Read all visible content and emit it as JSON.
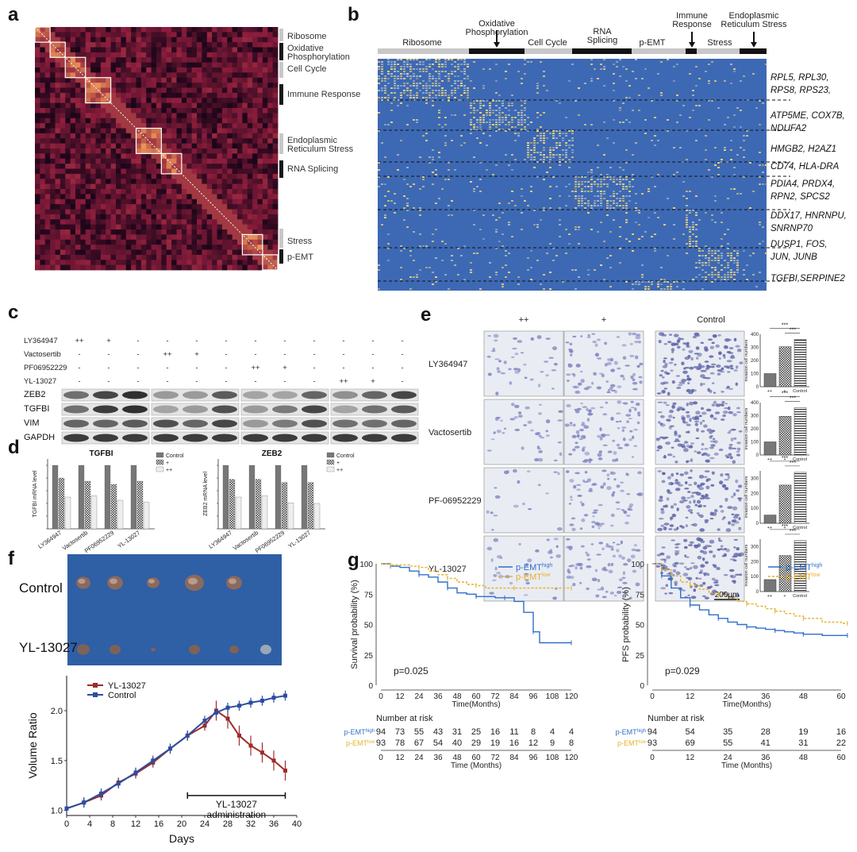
{
  "panel_letters": {
    "a": "a",
    "b": "b",
    "c": "c",
    "d": "d",
    "e": "e",
    "f": "f",
    "g": "g"
  },
  "panel_a": {
    "colors": {
      "low": "#1a0519",
      "mid": "#8c1d3c",
      "high": "#f6a25c",
      "diag": "#ffffff"
    },
    "modules": [
      {
        "name": "Ribosome",
        "bar": "#c8c8c8"
      },
      {
        "name": "Oxidative Phosphorylation",
        "bar": "#1a1a1a"
      },
      {
        "name": "Cell Cycle",
        "bar": "#c8c8c8"
      },
      {
        "name": "Immune Response",
        "bar": "#1a1a1a"
      },
      {
        "name": "Endoplasmic Reticulum Stress",
        "bar": "#c8c8c8"
      },
      {
        "name": "RNA Splicing",
        "bar": "#1a1a1a"
      },
      {
        "name": "Stress",
        "bar": "#c8c8c8"
      },
      {
        "name": "p-EMT",
        "bar": "#1a1a1a"
      }
    ],
    "labels": {
      "ribosome": "Ribosome",
      "oxphos1": "Oxidative",
      "oxphos2": "Phosphorylation",
      "cellcycle": "Cell Cycle",
      "immune": "Immune Response",
      "er1": "Endoplasmic",
      "er2": "Reticulum Stress",
      "rna": "RNA Splicing",
      "stress": "Stress",
      "pemt": "p-EMT"
    }
  },
  "panel_b": {
    "colors": {
      "base": "#3d69b4",
      "hot": "#f0d27a",
      "warm": "#a9b9c4"
    },
    "header": {
      "ribosome": "Ribosome",
      "oxphos1": "Oxidative",
      "oxphos2": "Phosphorylation",
      "cellcycle": "Cell Cycle",
      "rna1": "RNA",
      "rna2": "Splicing",
      "pemt": "p-EMT",
      "immune1": "Immune",
      "immune2": "Response",
      "stress": "Stress",
      "er1": "Endoplasmic",
      "er2": "Reticulum Stress"
    },
    "gene_labels": [
      [
        "RPL5, RPL30,",
        "RPS8, RPS23,"
      ],
      [
        "ATP5ME, COX7B,",
        "NDUFA2"
      ],
      [
        "HMGB2, H2AZ1"
      ],
      [
        "CD74, HLA-DRA"
      ],
      [
        "PDIA4, PRDX4,",
        "RPN2, SPCS2"
      ],
      [
        "DDX17, HNRNPU,",
        "SNRNP70"
      ],
      [
        "DUSP1, FOS,",
        "JUN, JUNB"
      ],
      [
        "TGFBI,SERPINE2"
      ]
    ]
  },
  "panel_c": {
    "rows": [
      {
        "label": "LY364947",
        "values": [
          "++",
          "+",
          "-",
          "-",
          "-",
          "-",
          "-",
          "-",
          "-",
          "-",
          "-",
          "-"
        ]
      },
      {
        "label": "Vactosertib",
        "values": [
          "-",
          "-",
          "-",
          "++",
          "+",
          "-",
          "-",
          "-",
          "-",
          "-",
          "-",
          "-"
        ]
      },
      {
        "label": "PF06952229",
        "values": [
          "-",
          "-",
          "-",
          "-",
          "-",
          "-",
          "++",
          "+",
          "-",
          "-",
          "-",
          "-"
        ]
      },
      {
        "label": "YL-13027",
        "values": [
          "-",
          "-",
          "-",
          "-",
          "-",
          "-",
          "-",
          "-",
          "-",
          "++",
          "+",
          "-"
        ]
      }
    ],
    "blots": [
      "ZEB2",
      "TGFBI",
      "VIM",
      "GAPDH"
    ]
  },
  "panel_d": {
    "charts": [
      {
        "title": "TGFBI",
        "ylabel": "TGFBI mRNA level",
        "groups": [
          "LY364947",
          "Vactosertib",
          "PF06952229",
          "YL-13027"
        ],
        "series": [
          {
            "name": "Control",
            "values": [
              1,
              1,
              1,
              1
            ]
          },
          {
            "name": "+",
            "values": [
              0.8,
              0.75,
              0.7,
              0.75
            ]
          },
          {
            "name": "++",
            "values": [
              0.5,
              0.52,
              0.45,
              0.42
            ]
          }
        ]
      },
      {
        "title": "ZEB2",
        "ylabel": "ZEB2 mRNA level",
        "groups": [
          "LY364947",
          "Vactosertib",
          "PF06952229",
          "YL-13027"
        ],
        "series": [
          {
            "name": "Control",
            "values": [
              1,
              1,
              1,
              1
            ]
          },
          {
            "name": "+",
            "values": [
              0.78,
              0.78,
              0.73,
              0.73
            ]
          },
          {
            "name": "++",
            "values": [
              0.5,
              0.52,
              0.41,
              0.4
            ]
          }
        ]
      }
    ],
    "legend": [
      "Control",
      "+",
      "++"
    ]
  },
  "panel_e": {
    "cols": [
      "++",
      "+",
      "Control"
    ],
    "rows": [
      {
        "label": "LY364947",
        "values": [
          100,
          305,
          360
        ],
        "ylim": [
          0,
          400
        ],
        "ticks": [
          "0",
          "100",
          "200",
          "300",
          "400"
        ]
      },
      {
        "label": "Vactosertib",
        "values": [
          100,
          295,
          360
        ],
        "ylim": [
          0,
          400
        ],
        "ticks": [
          "0",
          "100",
          "200",
          "300",
          "400"
        ]
      },
      {
        "label": "PF-06952229",
        "values": [
          55,
          255,
          340
        ],
        "ylim": [
          0,
          350
        ],
        "ticks": [
          "0",
          "100",
          "200",
          "300"
        ]
      },
      {
        "label": "YL-13027",
        "values": [
          80,
          240,
          340
        ],
        "ylim": [
          0,
          350
        ],
        "ticks": [
          "0",
          "100",
          "200",
          "300"
        ]
      }
    ],
    "bar_ylabel": "invasion cell numbers",
    "bar_xticks": [
      "++",
      "+",
      "Control"
    ],
    "sig": "***",
    "scale": "200μm"
  },
  "panel_f": {
    "photo_labels": {
      "control": "Control",
      "yl": "YL-13027"
    },
    "chart_data": {
      "type": "line",
      "xlabel": "Days",
      "ylabel": "Volume Ratio",
      "xlim": [
        0,
        40
      ],
      "ylim": [
        0.95,
        2.35
      ],
      "xticks": [
        0,
        4,
        8,
        12,
        16,
        20,
        24,
        28,
        32,
        36,
        40
      ],
      "yticks": [
        1.0,
        1.5,
        2.0
      ],
      "series": [
        {
          "name": "YL-13027",
          "color": "#9e2a2b",
          "x": [
            0,
            3,
            6,
            9,
            12,
            15,
            18,
            21,
            24,
            26,
            28,
            30,
            32,
            34,
            36,
            38
          ],
          "y": [
            1.02,
            1.08,
            1.15,
            1.28,
            1.37,
            1.48,
            1.62,
            1.75,
            1.85,
            2.0,
            1.92,
            1.75,
            1.65,
            1.58,
            1.5,
            1.4
          ]
        },
        {
          "name": "Control",
          "color": "#2a4ea0",
          "x": [
            0,
            3,
            6,
            9,
            12,
            15,
            18,
            21,
            24,
            26,
            28,
            30,
            32,
            34,
            36,
            38
          ],
          "y": [
            1.02,
            1.08,
            1.17,
            1.27,
            1.38,
            1.5,
            1.62,
            1.75,
            1.9,
            1.98,
            2.03,
            2.05,
            2.08,
            2.1,
            2.13,
            2.15
          ]
        }
      ],
      "annotation": {
        "line1": "YL-13027",
        "line2": "administration"
      }
    }
  },
  "panel_g": {
    "charts": [
      {
        "ylabel": "Survival probability (%)",
        "xlabel": "Time(Months)",
        "pvalue": "p=0.025",
        "xticks": [
          0,
          12,
          24,
          36,
          48,
          60,
          72,
          84,
          96,
          108,
          120
        ],
        "yticks": [
          0,
          25,
          50,
          75,
          100
        ],
        "legend": [
          {
            "name": "p-EMT",
            "sup": "high",
            "color": "#2f6fcb"
          },
          {
            "name": "p-EMT",
            "sup": "low",
            "color": "#e6b12c"
          }
        ],
        "series": [
          {
            "name": "p-EMT high",
            "color": "#2f6fcb",
            "x": [
              0,
              6,
              12,
              18,
              24,
              30,
              36,
              42,
              48,
              54,
              60,
              66,
              72,
              78,
              84,
              90,
              96,
              100,
              108,
              120
            ],
            "y": [
              100,
              98,
              97,
              94,
              91,
              89,
              85,
              80,
              76,
              75,
              73,
              73,
              72,
              72,
              69,
              60,
              44,
              35,
              35,
              35
            ]
          },
          {
            "name": "p-EMT low",
            "color": "#e6b12c",
            "x": [
              0,
              6,
              12,
              18,
              24,
              30,
              36,
              42,
              48,
              54,
              60,
              66,
              72,
              84,
              96,
              108,
              120
            ],
            "y": [
              100,
              99,
              99,
              98,
              97,
              94,
              91,
              88,
              85,
              83,
              82,
              80,
              80,
              80,
              80,
              80,
              80
            ]
          }
        ],
        "risk": {
          "title": "Number at risk",
          "times": [
            "0",
            "12",
            "24",
            "36",
            "48",
            "60",
            "72",
            "84",
            "96",
            "108",
            "120"
          ],
          "xlabel": "Time (Months)",
          "rows": [
            {
              "name": "p-EMT",
              "sup": "high",
              "color": "#2f6fcb",
              "values": [
                "94",
                "73",
                "55",
                "43",
                "31",
                "25",
                "16",
                "11",
                "8",
                "4",
                "4"
              ]
            },
            {
              "name": "p-EMT",
              "sup": "low",
              "color": "#e6b12c",
              "values": [
                "93",
                "78",
                "67",
                "54",
                "40",
                "29",
                "19",
                "16",
                "12",
                "9",
                "8"
              ]
            }
          ]
        }
      },
      {
        "ylabel": "PFS probability (%)",
        "xlabel": "Time(Months)",
        "pvalue": "p=0.029",
        "xticks": [
          0,
          12,
          24,
          36,
          48,
          60
        ],
        "yticks": [
          0,
          25,
          50,
          75,
          100
        ],
        "legend": [
          {
            "name": "p-EMT",
            "sup": "high",
            "color": "#2f6fcb"
          },
          {
            "name": "p-EMT",
            "sup": "low",
            "color": "#e6b12c"
          }
        ],
        "series": [
          {
            "name": "p-EMT high",
            "color": "#2f6fcb",
            "x": [
              0,
              3,
              6,
              9,
              12,
              15,
              18,
              21,
              24,
              27,
              30,
              33,
              36,
              39,
              42,
              45,
              48,
              54,
              60,
              62
            ],
            "y": [
              100,
              90,
              80,
              72,
              66,
              62,
              58,
              55,
              52,
              50,
              48,
              47,
              46,
              45,
              44,
              43,
              42,
              41,
              41,
              41
            ]
          },
          {
            "name": "p-EMT low",
            "color": "#e6b12c",
            "x": [
              0,
              3,
              6,
              9,
              12,
              15,
              18,
              21,
              24,
              27,
              30,
              33,
              36,
              39,
              42,
              45,
              48,
              54,
              60,
              62
            ],
            "y": [
              100,
              95,
              90,
              85,
              82,
              79,
              76,
              74,
              72,
              69,
              67,
              65,
              63,
              61,
              59,
              57,
              55,
              52,
              51,
              51
            ]
          }
        ],
        "risk": {
          "title": "Number at risk",
          "times": [
            "0",
            "12",
            "24",
            "36",
            "48",
            "60"
          ],
          "xlabel": "Time (Months)",
          "rows": [
            {
              "name": "p-EMT",
              "sup": "high",
              "color": "#2f6fcb",
              "values": [
                "94",
                "54",
                "35",
                "28",
                "19",
                "16"
              ]
            },
            {
              "name": "p-EMT",
              "sup": "low",
              "color": "#e6b12c",
              "values": [
                "93",
                "69",
                "55",
                "41",
                "31",
                "22"
              ]
            }
          ]
        }
      }
    ]
  }
}
